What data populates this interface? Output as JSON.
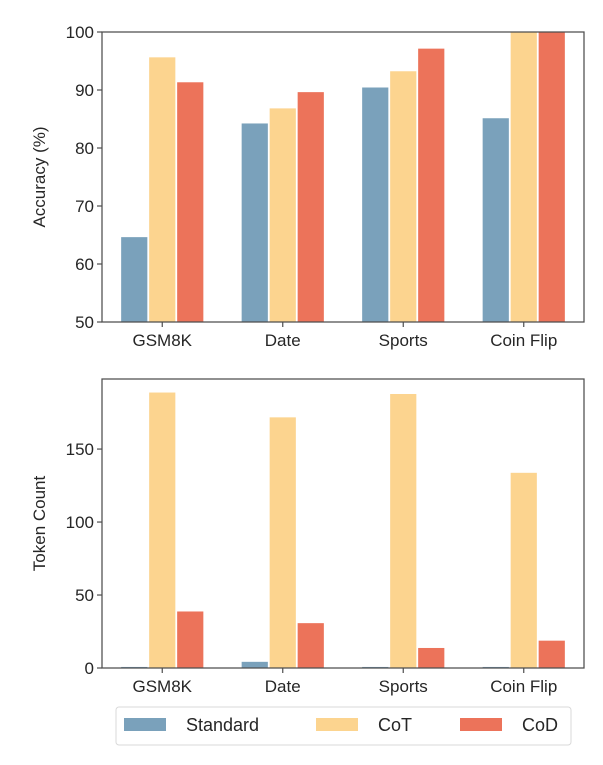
{
  "chart_data": [
    {
      "type": "bar",
      "title": "",
      "xlabel": "",
      "ylabel": "Accuracy (%)",
      "ylim": [
        50,
        100
      ],
      "yticks": [
        50,
        60,
        70,
        80,
        90,
        100
      ],
      "grid": false,
      "categories": [
        "GSM8K",
        "Date",
        "Sports",
        "Coin Flip"
      ],
      "series": [
        {
          "name": "Standard",
          "color": "#7aa1bb",
          "values": [
            64.7,
            84.3,
            90.5,
            85.2
          ]
        },
        {
          "name": "CoT",
          "color": "#fcd48f",
          "values": [
            95.7,
            86.9,
            93.3,
            100.0
          ]
        },
        {
          "name": "CoD",
          "color": "#ec735a",
          "values": [
            91.4,
            89.7,
            97.2,
            100.0
          ]
        }
      ]
    },
    {
      "type": "bar",
      "title": "",
      "xlabel": "",
      "ylabel": "Token Count",
      "ylim": [
        0,
        198
      ],
      "yticks": [
        0,
        50,
        100,
        150
      ],
      "grid": false,
      "categories": [
        "GSM8K",
        "Date",
        "Sports",
        "Coin Flip"
      ],
      "series": [
        {
          "name": "Standard",
          "color": "#7aa1bb",
          "values": [
            1,
            4.5,
            1,
            1
          ]
        },
        {
          "name": "CoT",
          "color": "#fcd48f",
          "values": [
            189,
            172,
            188,
            134
          ]
        },
        {
          "name": "CoD",
          "color": "#ec735a",
          "values": [
            39,
            31,
            14,
            19
          ]
        }
      ]
    }
  ],
  "legend": {
    "placement": "bottom",
    "items": [
      {
        "label": "Standard",
        "color": "#7aa1bb"
      },
      {
        "label": "CoT",
        "color": "#fcd48f"
      },
      {
        "label": "CoD",
        "color": "#ec735a"
      }
    ]
  }
}
